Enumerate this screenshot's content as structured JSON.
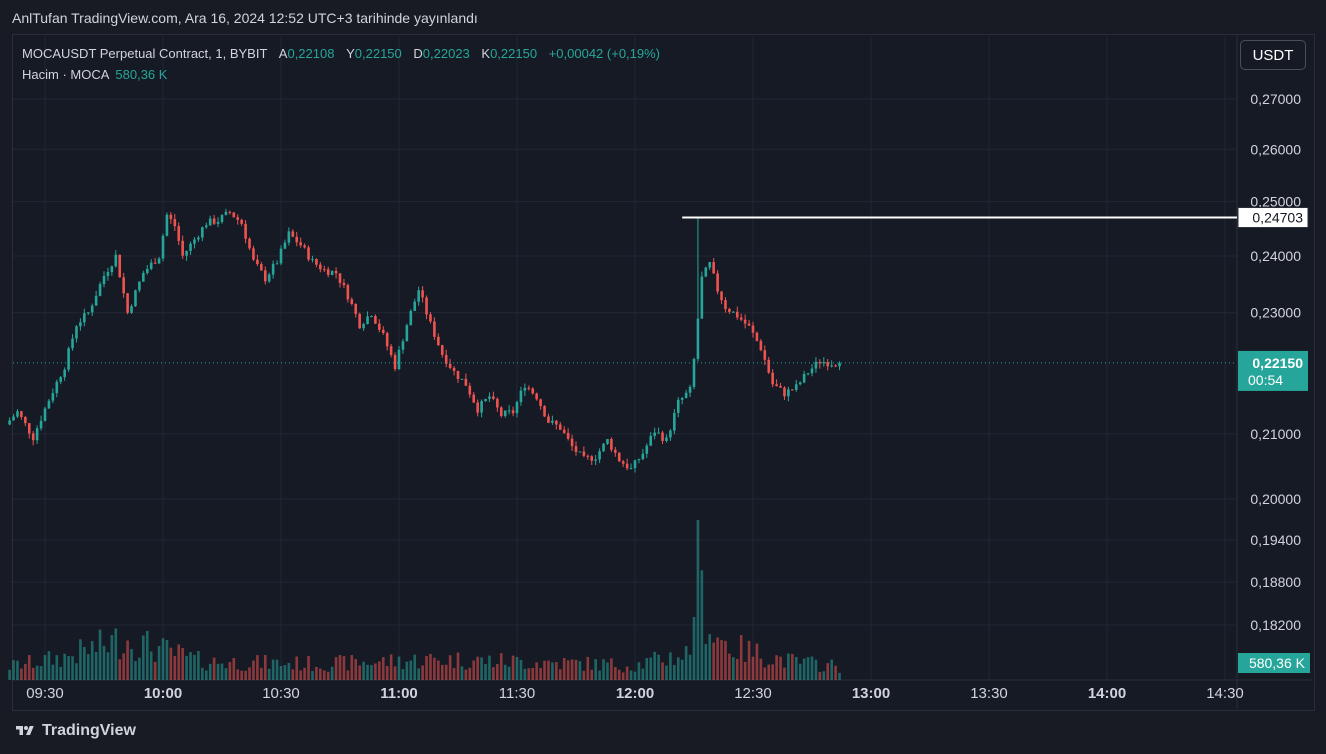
{
  "publish_info": "AnlTufan TradingView.com, Ara 16, 2024 12:52 UTC+3 tarihinde yayınlandı",
  "legend": {
    "symbol": "MOCAUSDT Perpetual Contract, 1, BYBIT",
    "o_label": "A",
    "o_value": "0,22108",
    "h_label": "Y",
    "h_value": "0,22150",
    "l_label": "D",
    "l_value": "0,22023",
    "c_label": "K",
    "c_value": "0,22150",
    "change": "+0,00042 (+0,19%)",
    "volume_label": "Hacim · MOCA",
    "volume_value": "580,36 K"
  },
  "currency": "USDT",
  "footer_brand": "TradingView",
  "colors": {
    "up": "#26a69a",
    "down": "#ef5350",
    "background": "#161a25",
    "grid": "#232733"
  },
  "chart_data": {
    "type": "candlestick",
    "y_scale": "log",
    "y_ticks": [
      "0,27000",
      "0,26000",
      "0,25000",
      "0,24000",
      "0,23000",
      "0,21000",
      "0,20000",
      "0,19400",
      "0,18800",
      "0,18200"
    ],
    "y_tick_values": [
      0.27,
      0.26,
      0.25,
      0.24,
      0.23,
      0.21,
      0.2,
      0.194,
      0.188,
      0.182
    ],
    "x_ticks": [
      {
        "label": "09:30",
        "bold": false,
        "min": 570
      },
      {
        "label": "10:00",
        "bold": true,
        "min": 600
      },
      {
        "label": "10:30",
        "bold": false,
        "min": 630
      },
      {
        "label": "11:00",
        "bold": true,
        "min": 660
      },
      {
        "label": "11:30",
        "bold": false,
        "min": 690
      },
      {
        "label": "12:00",
        "bold": true,
        "min": 720
      },
      {
        "label": "12:30",
        "bold": false,
        "min": 750
      },
      {
        "label": "13:00",
        "bold": true,
        "min": 780
      },
      {
        "label": "13:30",
        "bold": false,
        "min": 810
      },
      {
        "label": "14:00",
        "bold": true,
        "min": 840
      },
      {
        "label": "14:30",
        "bold": false,
        "min": 870
      }
    ],
    "start_time": "09:21",
    "end_time": "12:52",
    "price_keypoints": [
      [
        561,
        0.2115
      ],
      [
        564,
        0.2135
      ],
      [
        568,
        0.2095
      ],
      [
        572,
        0.2155
      ],
      [
        576,
        0.221
      ],
      [
        579,
        0.228
      ],
      [
        582,
        0.23
      ],
      [
        586,
        0.2365
      ],
      [
        589,
        0.24
      ],
      [
        592,
        0.23
      ],
      [
        596,
        0.237
      ],
      [
        600,
        0.24
      ],
      [
        602,
        0.2475
      ],
      [
        604,
        0.2455
      ],
      [
        606,
        0.24
      ],
      [
        609,
        0.243
      ],
      [
        612,
        0.246
      ],
      [
        615,
        0.2465
      ],
      [
        618,
        0.248
      ],
      [
        621,
        0.246
      ],
      [
        624,
        0.239
      ],
      [
        627,
        0.236
      ],
      [
        630,
        0.239
      ],
      [
        633,
        0.244
      ],
      [
        636,
        0.242
      ],
      [
        639,
        0.239
      ],
      [
        642,
        0.2375
      ],
      [
        645,
        0.237
      ],
      [
        648,
        0.233
      ],
      [
        651,
        0.228
      ],
      [
        654,
        0.23
      ],
      [
        657,
        0.226
      ],
      [
        660,
        0.221
      ],
      [
        663,
        0.228
      ],
      [
        666,
        0.234
      ],
      [
        669,
        0.228
      ],
      [
        672,
        0.223
      ],
      [
        675,
        0.22
      ],
      [
        678,
        0.218
      ],
      [
        681,
        0.214
      ],
      [
        684,
        0.216
      ],
      [
        687,
        0.213
      ],
      [
        690,
        0.2135
      ],
      [
        693,
        0.218
      ],
      [
        696,
        0.216
      ],
      [
        699,
        0.212
      ],
      [
        702,
        0.211
      ],
      [
        705,
        0.208
      ],
      [
        708,
        0.206
      ],
      [
        711,
        0.2065
      ],
      [
        714,
        0.209
      ],
      [
        717,
        0.206
      ],
      [
        720,
        0.2045
      ],
      [
        723,
        0.207
      ],
      [
        726,
        0.2105
      ],
      [
        729,
        0.209
      ],
      [
        732,
        0.215
      ],
      [
        735,
        0.217
      ],
      [
        736,
        0.222
      ],
      [
        738,
        0.236
      ],
      [
        740,
        0.2385
      ],
      [
        742,
        0.234
      ],
      [
        744,
        0.231
      ],
      [
        747,
        0.2295
      ],
      [
        750,
        0.2275
      ],
      [
        753,
        0.224
      ],
      [
        756,
        0.218
      ],
      [
        759,
        0.2165
      ],
      [
        762,
        0.2175
      ],
      [
        765,
        0.22
      ],
      [
        768,
        0.2218
      ],
      [
        771,
        0.2215
      ],
      [
        772,
        0.2215
      ]
    ],
    "volume_keypoints": [
      [
        561,
        300
      ],
      [
        575,
        500
      ],
      [
        590,
        900
      ],
      [
        610,
        400
      ],
      [
        640,
        350
      ],
      [
        670,
        450
      ],
      [
        700,
        380
      ],
      [
        720,
        320
      ],
      [
        734,
        600
      ],
      [
        736,
        3500
      ],
      [
        737,
        1800
      ],
      [
        740,
        1000
      ],
      [
        745,
        700
      ],
      [
        760,
        400
      ],
      [
        772,
        300
      ]
    ],
    "last_price": "0,22150",
    "countdown": "00:54",
    "last_volume": "580,36 K",
    "marker_price": "0,24703",
    "marker_value": 0.24703,
    "marker_start_min": 732,
    "last_value": 0.2215
  }
}
